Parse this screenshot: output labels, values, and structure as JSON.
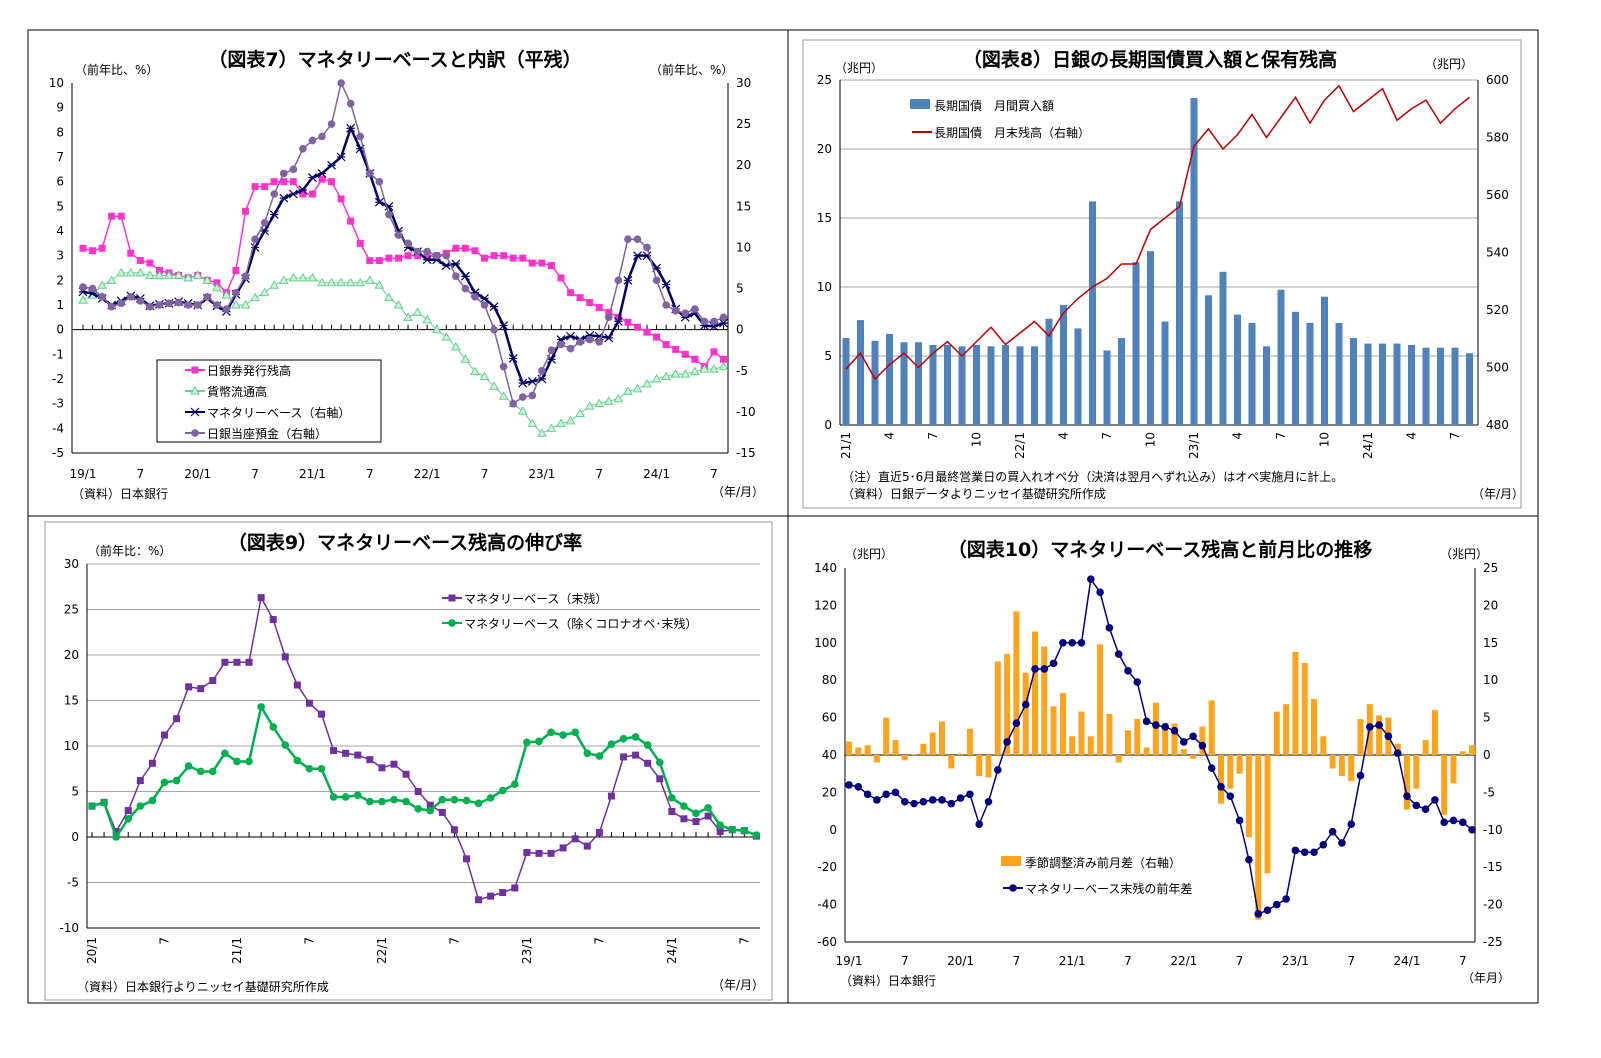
{
  "chart_data": [
    {
      "type": "line",
      "title": "（図表7）マネタリーベースと内訳（平残）",
      "ylabel_left": "（前年比、%）",
      "ylabel_right": "（前年比、%）",
      "xlabel": "（年/月）",
      "source": "（資料）日本銀行",
      "x_range": [
        "19/1",
        "24/8"
      ],
      "xtick_labels": [
        "19/1",
        "7",
        "20/1",
        "7",
        "21/1",
        "7",
        "22/1",
        "7",
        "23/1",
        "7",
        "24/1",
        "7"
      ],
      "ylim_left": [
        -5,
        10
      ],
      "ylim_right": [
        -15,
        30
      ],
      "yticks_left": [
        10,
        9,
        8,
        7,
        6,
        5,
        4,
        3,
        2,
        1,
        0,
        -1,
        -2,
        -3,
        -4,
        -5
      ],
      "yticks_right": [
        30,
        25,
        20,
        15,
        10,
        5,
        0,
        -5,
        -10,
        -15
      ],
      "negative_tick_color": "#ff0000",
      "grid": false,
      "legend_placement": "bottom-left",
      "series": [
        {
          "name": "日銀券発行残高",
          "axis": "left",
          "color": "#ff33cc",
          "marker": "square",
          "values": [
            3.3,
            3.2,
            3.3,
            4.6,
            4.6,
            3.1,
            2.8,
            2.7,
            2.4,
            2.3,
            2.2,
            2.1,
            2.2,
            2.0,
            1.9,
            1.5,
            2.4,
            4.8,
            5.8,
            5.8,
            6.0,
            6.0,
            6.0,
            5.5,
            5.5,
            6.1,
            6.0,
            5.3,
            4.4,
            3.5,
            2.8,
            2.8,
            2.9,
            2.9,
            3.0,
            3.0,
            3.0,
            3.0,
            3.1,
            3.3,
            3.3,
            3.2,
            2.9,
            3.0,
            3.0,
            2.9,
            2.9,
            2.7,
            2.7,
            2.6,
            2.1,
            1.5,
            1.3,
            1.1,
            0.9,
            0.7,
            0.5,
            0.3,
            0.1,
            -0.1,
            -0.3,
            -0.6,
            -0.8,
            -1.0,
            -1.2,
            -1.5,
            -0.9,
            -1.2
          ]
        },
        {
          "name": "貨幣流通高",
          "axis": "left",
          "color": "#66cc99",
          "marker": "triangle",
          "values": [
            1.2,
            1.4,
            1.8,
            2.0,
            2.3,
            2.3,
            2.3,
            2.2,
            2.2,
            2.2,
            2.2,
            2.1,
            2.2,
            2.0,
            1.7,
            1.4,
            1.0,
            1.0,
            1.3,
            1.5,
            1.8,
            2.0,
            2.1,
            2.1,
            2.1,
            1.9,
            1.9,
            1.9,
            1.9,
            1.9,
            2.0,
            1.8,
            1.3,
            1.0,
            0.5,
            0.7,
            0.4,
            0.0,
            -0.3,
            -0.7,
            -1.2,
            -1.7,
            -1.9,
            -2.3,
            -2.7,
            -3.0,
            -3.3,
            -3.8,
            -4.2,
            -4.0,
            -3.8,
            -3.7,
            -3.4,
            -3.1,
            -3.0,
            -2.9,
            -2.8,
            -2.5,
            -2.4,
            -2.2,
            -2.0,
            -1.9,
            -1.8,
            -1.8,
            -1.7,
            -1.6,
            -1.6,
            -1.5
          ]
        },
        {
          "name": "マネタリーベース（右軸）",
          "axis": "right",
          "color": "#000066",
          "marker": "asterisk",
          "values": [
            4.6,
            4.4,
            3.8,
            3.0,
            3.5,
            4.1,
            3.8,
            2.9,
            3.1,
            3.2,
            3.4,
            3.2,
            3.0,
            3.8,
            2.9,
            2.2,
            4.3,
            6.2,
            10,
            12,
            14,
            16,
            16.5,
            17,
            18.5,
            19,
            20,
            21,
            24.5,
            22,
            19,
            15.5,
            15,
            12,
            10,
            9.5,
            8.5,
            8.5,
            7.8,
            8,
            6.5,
            4.5,
            3.8,
            2.8,
            0.5,
            -3.5,
            -6.5,
            -6.3,
            -6,
            -3.6,
            -1.2,
            -0.8,
            -1.2,
            -0.7,
            -0.8,
            -1,
            1,
            6,
            9,
            9,
            7.5,
            5.5,
            2.5,
            1.5,
            2,
            0.5,
            0.4,
            0.8
          ]
        },
        {
          "name": "日銀当座預金（右軸）",
          "axis": "right",
          "color": "#8064a2",
          "marker": "circle",
          "values": [
            5.2,
            5,
            4,
            2.8,
            3.2,
            4,
            3.5,
            2.8,
            3,
            3.2,
            3.3,
            3,
            3,
            4,
            3,
            2.5,
            4.5,
            6.5,
            11,
            13,
            16.5,
            19,
            19.5,
            22,
            23,
            23.5,
            25,
            30,
            27.5,
            23.5,
            19,
            18,
            14,
            11.5,
            10.5,
            9.5,
            9.5,
            9,
            9,
            6.5,
            5,
            4,
            3,
            0,
            -4.5,
            -9,
            -8.2,
            -8,
            -5,
            -2.5,
            -1.8,
            -2.3,
            -1.5,
            -1.2,
            -1.5,
            1.5,
            6,
            11,
            11,
            10,
            6,
            3,
            2.3,
            2,
            2.5,
            1,
            1,
            1.5
          ]
        }
      ]
    },
    {
      "type": "bar+line",
      "title": "（図表8）日銀の長期国債買入額と保有残高",
      "ylabel_left": "（兆円）",
      "ylabel_right": "（兆円）",
      "xlabel": "（年/月）",
      "note": "（注）直近5･6月最終営業日の買入れオペ分（決済は翌月へずれ込み）はオペ実施月に計上。",
      "source": "（資料）日銀データよりニッセイ基礎研究所作成",
      "x_range": [
        "21/1",
        "24/8"
      ],
      "xtick_labels": [
        "21/1",
        "4",
        "7",
        "10",
        "22/1",
        "4",
        "7",
        "10",
        "23/1",
        "4",
        "7",
        "10",
        "24/1",
        "4",
        "7"
      ],
      "ylim_left": [
        0,
        25
      ],
      "ylim_right": [
        480,
        600
      ],
      "yticks_left": [
        25,
        20,
        15,
        10,
        5,
        0
      ],
      "yticks_right": [
        600,
        580,
        560,
        540,
        520,
        500,
        480
      ],
      "grid": true,
      "legend_placement": "top-left",
      "series": [
        {
          "name": "長期国債　月間買入額",
          "axis": "left",
          "kind": "bar",
          "color": "#4f81bd",
          "values": [
            6.3,
            7.6,
            6.1,
            6.6,
            6.0,
            6.0,
            5.8,
            5.8,
            5.7,
            5.8,
            5.7,
            5.8,
            5.7,
            5.7,
            7.7,
            8.7,
            7.0,
            16.2,
            5.4,
            6.3,
            11.8,
            12.6,
            7.5,
            16.2,
            23.7,
            9.4,
            11.1,
            8.0,
            7.4,
            5.7,
            9.8,
            8.2,
            7.4,
            9.3,
            7.4,
            6.3,
            5.9,
            5.9,
            5.9,
            5.8,
            5.6,
            5.6,
            5.6,
            5.2
          ]
        },
        {
          "name": "長期国債　月末残高（右軸）",
          "axis": "right",
          "kind": "line",
          "color": "#c00000",
          "values": [
            499.5,
            505,
            496,
            501,
            505,
            500,
            505,
            509,
            504,
            509,
            514,
            508,
            512,
            516,
            511,
            519,
            524,
            528,
            531,
            536,
            536,
            548,
            552,
            556,
            577,
            583,
            576,
            581,
            588,
            580,
            587,
            594,
            585,
            593,
            598,
            589,
            593,
            597,
            586,
            590,
            593,
            585,
            590,
            594
          ]
        }
      ]
    },
    {
      "type": "line",
      "title": "（図表9）マネタリーベース残高の伸び率",
      "ylabel_left": "（前年比：%）",
      "xlabel": "（年/月）",
      "source": "（資料）日本銀行よりニッセイ基礎研究所作成",
      "x_range": [
        "20/1",
        "24/8"
      ],
      "xtick_labels": [
        "20/1",
        "7",
        "21/1",
        "7",
        "22/1",
        "7",
        "23/1",
        "7",
        "24/1",
        "7"
      ],
      "ylim_left": [
        -10,
        30
      ],
      "yticks_left": [
        30,
        25,
        20,
        15,
        10,
        5,
        0,
        -5,
        -10
      ],
      "negative_tick_color": "#ff0000",
      "grid": true,
      "legend_placement": "top-right",
      "series": [
        {
          "name": "マネタリーベース（末残）",
          "axis": "left",
          "color": "#7030a0",
          "marker": "square",
          "values": [
            3.4,
            3.8,
            0.6,
            2.9,
            6.2,
            8.1,
            11.2,
            13,
            16.5,
            16.3,
            17.2,
            19.2,
            19.2,
            19.2,
            26.3,
            23.9,
            19.8,
            16.7,
            14.7,
            13.5,
            9.5,
            9.2,
            9.0,
            8.5,
            7.6,
            8.0,
            6.9,
            5.0,
            3.5,
            2.7,
            0.8,
            -2.4,
            -6.9,
            -6.5,
            -6.1,
            -5.6,
            -1.7,
            -1.8,
            -1.8,
            -1.2,
            -0.2,
            -1.0,
            0.5,
            4.5,
            8.8,
            9.0,
            8.1,
            6.4,
            2.8,
            2.0,
            1.7,
            2.3,
            0.6,
            0.8,
            0.7,
            0.1
          ]
        },
        {
          "name": "マネタリーベース（除くコロナオペ･末残）",
          "axis": "left",
          "color": "#00b050",
          "marker": "circle",
          "values": [
            3.4,
            3.8,
            0.0,
            2.0,
            3.4,
            4.0,
            6.0,
            6.2,
            7.8,
            7.2,
            7.2,
            9.2,
            8.3,
            8.3,
            14.3,
            12.1,
            10.1,
            8.4,
            7.5,
            7.5,
            4.4,
            4.4,
            4.6,
            3.9,
            3.9,
            4.1,
            3.9,
            3.1,
            2.9,
            4.1,
            4.1,
            4.0,
            3.7,
            4.3,
            5.1,
            5.8,
            10.4,
            10.5,
            11.5,
            11.2,
            11.5,
            9.2,
            8.9,
            10.2,
            10.8,
            11.0,
            10.1,
            8.2,
            4.3,
            3.4,
            2.6,
            3.2,
            1.3,
            0.8,
            0.7,
            0.2
          ]
        }
      ]
    },
    {
      "type": "bar+line",
      "title": "（図表10）マネタリーベース残高と前月比の推移",
      "ylabel_left": "（兆円）",
      "ylabel_right": "（兆円）",
      "xlabel": "（年月）",
      "source": "（資料）日本銀行",
      "x_range": [
        "19/1",
        "24/8"
      ],
      "xtick_labels": [
        "19/1",
        "7",
        "20/1",
        "7",
        "21/1",
        "7",
        "22/1",
        "7",
        "23/1",
        "7",
        "24/1",
        "7"
      ],
      "ylim_left": [
        -60,
        140
      ],
      "ylim_right": [
        -25,
        25
      ],
      "yticks_left": [
        140,
        120,
        100,
        80,
        60,
        40,
        20,
        0,
        -20,
        -40,
        -60
      ],
      "yticks_right": [
        25,
        20,
        15,
        10,
        5,
        0,
        -5,
        -10,
        -15,
        -20,
        -25
      ],
      "negative_tick_color": "#ff0000",
      "grid": false,
      "legend_placement": "bottom-center",
      "series": [
        {
          "name": "季節調整済み前月差（右軸）",
          "axis": "right",
          "kind": "bar",
          "color": "#ffa31a",
          "values": [
            1.8,
            1.0,
            1.3,
            -1,
            5,
            2,
            -0.7,
            0.1,
            1.5,
            3,
            4.5,
            -1.8,
            0.2,
            3.5,
            -2.8,
            -3,
            12.5,
            13.5,
            19.2,
            11,
            16.5,
            14.5,
            6.5,
            8.3,
            2.5,
            5.8,
            2.5,
            14.8,
            5.5,
            -1,
            3.3,
            4.8,
            1,
            7,
            4.3,
            4.2,
            0.8,
            -0.5,
            3.8,
            7.3,
            -6.5,
            -4.5,
            -2.5,
            -11,
            -22,
            -15.8,
            5.8,
            6.8,
            13.8,
            12.3,
            7.5,
            2.5,
            -1.8,
            -2.8,
            -3.5,
            4.8,
            6.8,
            5.3,
            5,
            1.5,
            -7.3,
            -4.5,
            2,
            6,
            -8,
            -3.8,
            0.5,
            1.3
          ]
        },
        {
          "name": "マネタリーベース末残の前年差",
          "axis": "left",
          "kind": "line",
          "color": "#000080",
          "marker": "circle",
          "values": [
            24,
            23,
            19,
            16,
            19,
            20,
            15,
            14,
            15,
            16,
            16,
            14,
            17,
            19,
            3,
            15,
            32,
            47,
            57,
            67,
            86,
            86,
            89,
            100,
            100,
            100,
            134,
            127,
            108,
            94,
            85,
            79,
            58,
            56,
            55,
            53,
            47,
            50,
            45,
            33,
            23,
            18,
            5,
            -16,
            -45,
            -43,
            -40,
            -37,
            -11,
            -12,
            -12,
            -8,
            -1,
            -7,
            3,
            29,
            55,
            56,
            50,
            41,
            18,
            13,
            11,
            16,
            4,
            5,
            4,
            0
          ]
        }
      ]
    }
  ]
}
